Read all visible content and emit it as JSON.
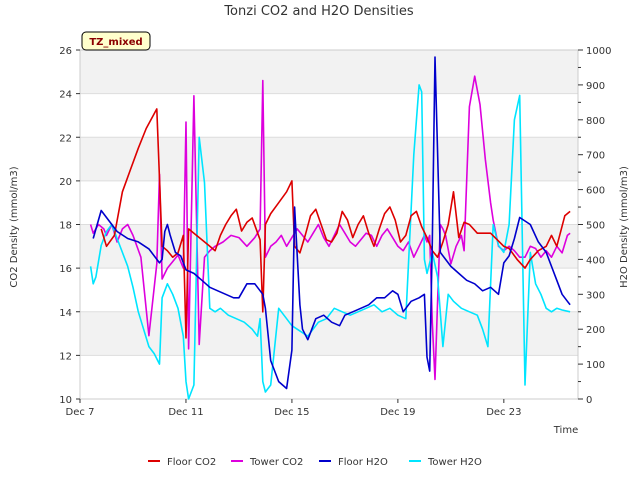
{
  "chart_data": {
    "type": "line",
    "title": "Tonzi CO2 and H2O Densities",
    "xlabel": "Time",
    "ylabel_left": "CO2 Density (mmol/m3)",
    "ylabel_right": "H2O Density (mmol/m3)",
    "badge": "TZ_mixed",
    "xlim": [
      7,
      25.8
    ],
    "ylim_left": [
      10,
      26
    ],
    "ylim_right": [
      0,
      1000
    ],
    "x_ticks": [
      {
        "v": 7,
        "label": "Dec 7"
      },
      {
        "v": 11,
        "label": "Dec 11"
      },
      {
        "v": 15,
        "label": "Dec 15"
      },
      {
        "v": 19,
        "label": "Dec 19"
      },
      {
        "v": 23,
        "label": "Dec 23"
      }
    ],
    "y_ticks_left": [
      10,
      12,
      14,
      16,
      18,
      20,
      22,
      24,
      26
    ],
    "y_ticks_right": [
      0,
      100,
      200,
      300,
      400,
      500,
      600,
      700,
      800,
      900,
      1000
    ],
    "grid": true,
    "legend_position": "bottom",
    "series": [
      {
        "name": "Floor CO2",
        "axis": "left",
        "color": "#dd0000",
        "x": [
          7.8,
          8.0,
          8.3,
          8.6,
          8.9,
          9.2,
          9.5,
          9.9,
          10.1,
          10.3,
          10.5,
          10.7,
          10.9,
          11.0,
          11.1,
          11.3,
          11.6,
          11.9,
          12.1,
          12.3,
          12.5,
          12.7,
          12.9,
          13.1,
          13.3,
          13.5,
          13.8,
          13.9,
          14.0,
          14.2,
          14.5,
          14.8,
          15.0,
          15.1,
          15.3,
          15.5,
          15.7,
          15.9,
          16.1,
          16.3,
          16.5,
          16.7,
          16.9,
          17.1,
          17.3,
          17.5,
          17.7,
          17.9,
          18.1,
          18.3,
          18.5,
          18.7,
          18.9,
          19.1,
          19.3,
          19.5,
          19.7,
          19.9,
          20.1,
          20.3,
          20.5,
          20.7,
          20.9,
          21.1,
          21.3,
          21.5,
          21.7,
          22.0,
          22.5,
          23.0,
          23.2,
          23.5,
          23.8,
          24.0,
          24.3,
          24.6,
          24.8,
          25.0,
          25.3,
          25.5
        ],
        "y": [
          17.8,
          17.0,
          17.5,
          19.5,
          20.5,
          21.5,
          22.4,
          23.3,
          17.0,
          16.8,
          16.5,
          16.7,
          17.5,
          12.8,
          17.8,
          17.6,
          17.3,
          17.0,
          16.8,
          17.5,
          18.0,
          18.4,
          18.7,
          17.7,
          18.1,
          18.3,
          17.3,
          14.0,
          18.0,
          18.5,
          19.0,
          19.5,
          20.0,
          17.0,
          16.7,
          17.5,
          18.4,
          18.7,
          18.0,
          17.3,
          17.2,
          17.6,
          18.6,
          18.2,
          17.4,
          18.0,
          18.4,
          17.6,
          17.0,
          17.8,
          18.5,
          18.8,
          18.2,
          17.2,
          17.5,
          18.4,
          18.6,
          17.9,
          17.4,
          16.8,
          16.5,
          17.2,
          18.0,
          19.5,
          17.4,
          18.1,
          18.0,
          17.6,
          17.6,
          17.0,
          16.9,
          16.4,
          16.0,
          16.4,
          16.8,
          17.0,
          17.5,
          17.0,
          18.4,
          18.6
        ]
      },
      {
        "name": "Tower CO2",
        "axis": "left",
        "color": "#dd00dd",
        "x": [
          7.4,
          7.5,
          7.7,
          7.9,
          8.0,
          8.2,
          8.4,
          8.6,
          8.8,
          9.0,
          9.3,
          9.6,
          9.9,
          10.0,
          10.1,
          10.3,
          10.5,
          10.7,
          10.9,
          11.0,
          11.1,
          11.3,
          11.5,
          11.7,
          11.9,
          12.1,
          12.4,
          12.7,
          13.0,
          13.3,
          13.6,
          13.8,
          13.9,
          14.0,
          14.2,
          14.4,
          14.6,
          14.8,
          15.0,
          15.2,
          15.4,
          15.6,
          15.8,
          16.0,
          16.2,
          16.4,
          16.6,
          16.8,
          17.0,
          17.2,
          17.4,
          17.6,
          17.8,
          18.0,
          18.2,
          18.4,
          18.6,
          18.8,
          19.0,
          19.2,
          19.4,
          19.6,
          19.8,
          20.0,
          20.1,
          20.2,
          20.3,
          20.4,
          20.5,
          20.6,
          20.7,
          20.8,
          21.0,
          21.2,
          21.4,
          21.5,
          21.7,
          21.9,
          22.1,
          22.3,
          22.5,
          22.6,
          22.8,
          23.0,
          23.2,
          23.4,
          23.6,
          23.8,
          24.0,
          24.2,
          24.4,
          24.6,
          24.8,
          25.0,
          25.2,
          25.4,
          25.5
        ],
        "y": [
          18.0,
          17.6,
          18.0,
          17.8,
          17.5,
          18.0,
          17.2,
          17.8,
          18.0,
          17.5,
          16.5,
          12.9,
          16.2,
          20.3,
          15.5,
          16.0,
          16.3,
          16.6,
          16.0,
          22.7,
          12.3,
          23.9,
          12.5,
          16.5,
          16.8,
          17.0,
          17.2,
          17.5,
          17.4,
          17.0,
          17.4,
          17.8,
          24.6,
          16.5,
          17.0,
          17.2,
          17.5,
          17.0,
          17.4,
          17.8,
          17.5,
          17.2,
          17.6,
          18.0,
          17.4,
          17.0,
          17.5,
          18.0,
          17.6,
          17.2,
          17.0,
          17.3,
          17.6,
          17.5,
          17.0,
          17.5,
          17.8,
          17.4,
          17.0,
          16.8,
          17.2,
          16.5,
          17.0,
          17.5,
          17.2,
          17.5,
          13.5,
          10.9,
          14.5,
          18.0,
          17.8,
          17.5,
          16.2,
          17.0,
          17.5,
          16.8,
          23.4,
          24.8,
          23.5,
          21.0,
          19.0,
          18.2,
          17.0,
          16.8,
          17.0,
          16.8,
          16.5,
          16.5,
          17.0,
          16.9,
          16.5,
          16.8,
          16.5,
          17.0,
          16.7,
          17.5,
          17.6
        ]
      },
      {
        "name": "Floor H2O",
        "axis": "right",
        "color": "#0000cc",
        "x": [
          7.5,
          7.8,
          8.0,
          8.4,
          8.8,
          9.2,
          9.6,
          10.0,
          10.1,
          10.2,
          10.3,
          10.4,
          10.6,
          10.8,
          11.0,
          11.3,
          11.6,
          11.9,
          12.2,
          12.5,
          12.8,
          13.0,
          13.3,
          13.6,
          13.9,
          14.0,
          14.2,
          14.5,
          14.8,
          15.0,
          15.1,
          15.3,
          15.4,
          15.6,
          15.9,
          16.2,
          16.5,
          16.8,
          17.0,
          17.3,
          17.6,
          17.9,
          18.2,
          18.5,
          18.8,
          19.0,
          19.2,
          19.5,
          19.8,
          20.0,
          20.1,
          20.2,
          20.3,
          20.4,
          20.6,
          20.8,
          21.0,
          21.3,
          21.6,
          21.9,
          22.2,
          22.5,
          22.8,
          23.0,
          23.2,
          23.4,
          23.6,
          23.8,
          24.0,
          24.3,
          24.6,
          24.8,
          25.0,
          25.2,
          25.4,
          25.5
        ],
        "y": [
          460,
          540,
          520,
          480,
          460,
          450,
          430,
          390,
          400,
          480,
          500,
          470,
          420,
          410,
          370,
          360,
          340,
          320,
          310,
          300,
          290,
          290,
          330,
          330,
          300,
          260,
          110,
          50,
          30,
          140,
          550,
          270,
          200,
          170,
          230,
          240,
          220,
          210,
          240,
          250,
          260,
          270,
          290,
          290,
          310,
          300,
          250,
          280,
          290,
          300,
          120,
          80,
          450,
          980,
          420,
          400,
          380,
          360,
          340,
          330,
          310,
          320,
          300,
          390,
          410,
          460,
          520,
          510,
          500,
          450,
          420,
          380,
          340,
          300,
          280,
          270
        ]
      },
      {
        "name": "Tower H2O",
        "axis": "right",
        "color": "#00e5ff",
        "x": [
          7.4,
          7.5,
          7.6,
          7.8,
          8.0,
          8.2,
          8.4,
          8.6,
          8.8,
          9.0,
          9.2,
          9.4,
          9.6,
          9.8,
          10.0,
          10.1,
          10.3,
          10.5,
          10.7,
          10.9,
          11.0,
          11.1,
          11.3,
          11.5,
          11.7,
          11.9,
          12.1,
          12.3,
          12.6,
          12.9,
          13.2,
          13.5,
          13.7,
          13.8,
          13.9,
          14.0,
          14.2,
          14.5,
          14.8,
          15.0,
          15.2,
          15.4,
          15.6,
          15.8,
          16.0,
          16.3,
          16.6,
          16.9,
          17.2,
          17.5,
          17.8,
          18.1,
          18.4,
          18.7,
          19.0,
          19.3,
          19.6,
          19.8,
          19.9,
          20.0,
          20.1,
          20.3,
          20.5,
          20.7,
          20.9,
          21.1,
          21.4,
          21.7,
          22.0,
          22.2,
          22.4,
          22.6,
          22.8,
          23.0,
          23.2,
          23.4,
          23.6,
          23.8,
          24.0,
          24.2,
          24.4,
          24.6,
          24.8,
          25.0,
          25.2,
          25.5
        ],
        "y": [
          380,
          330,
          350,
          440,
          480,
          500,
          460,
          420,
          380,
          320,
          250,
          200,
          150,
          130,
          100,
          290,
          330,
          300,
          260,
          180,
          50,
          0,
          40,
          750,
          620,
          260,
          250,
          260,
          240,
          230,
          220,
          200,
          180,
          230,
          50,
          20,
          40,
          260,
          230,
          210,
          200,
          190,
          180,
          200,
          220,
          230,
          260,
          250,
          240,
          250,
          260,
          270,
          250,
          260,
          240,
          230,
          700,
          900,
          880,
          400,
          360,
          420,
          350,
          150,
          300,
          280,
          260,
          250,
          240,
          200,
          150,
          500,
          440,
          420,
          500,
          800,
          870,
          40,
          420,
          330,
          300,
          260,
          250,
          260,
          255,
          250
        ]
      }
    ]
  }
}
